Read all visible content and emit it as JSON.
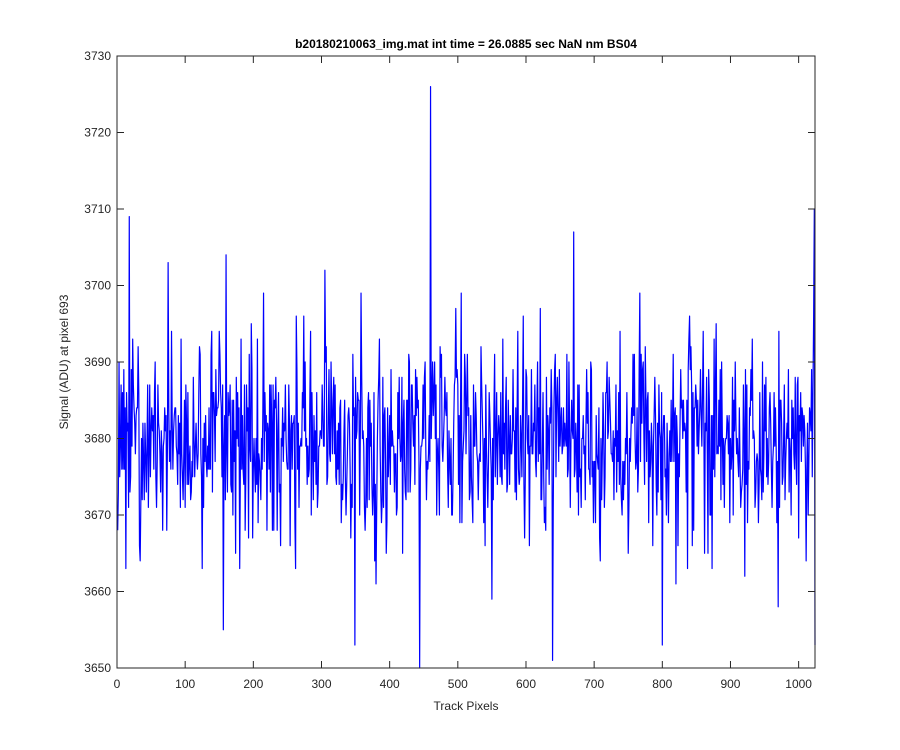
{
  "chart_data": {
    "type": "line",
    "title": "b20180210063_img.mat int time = 26.0885 sec  NaN nm BS04",
    "xlabel": "Track Pixels",
    "ylabel": "Signal (ADU) at pixel 693",
    "xlim": [
      0,
      1024
    ],
    "ylim": [
      3650,
      3730
    ],
    "xticks": [
      0,
      100,
      200,
      300,
      400,
      500,
      600,
      700,
      800,
      900,
      1000
    ],
    "yticks": [
      3650,
      3660,
      3670,
      3680,
      3690,
      3700,
      3710,
      3720,
      3730
    ],
    "grid": false,
    "legend": "none",
    "series": [
      {
        "color": "#0000ff",
        "x_start": 1,
        "x_step": 1,
        "mean": 3680,
        "std": 6.6,
        "min": 3650,
        "max": 3726,
        "notable_points": [
          {
            "x": 18,
            "y": 3709
          },
          {
            "x": 75,
            "y": 3703
          },
          {
            "x": 156,
            "y": 3655
          },
          {
            "x": 160,
            "y": 3704
          },
          {
            "x": 349,
            "y": 3653
          },
          {
            "x": 444,
            "y": 3650
          },
          {
            "x": 460,
            "y": 3726
          },
          {
            "x": 639,
            "y": 3651
          },
          {
            "x": 670,
            "y": 3707
          },
          {
            "x": 800,
            "y": 3653
          },
          {
            "x": 1023,
            "y": 3710
          },
          {
            "x": 1024,
            "y": 3653
          }
        ]
      }
    ]
  }
}
